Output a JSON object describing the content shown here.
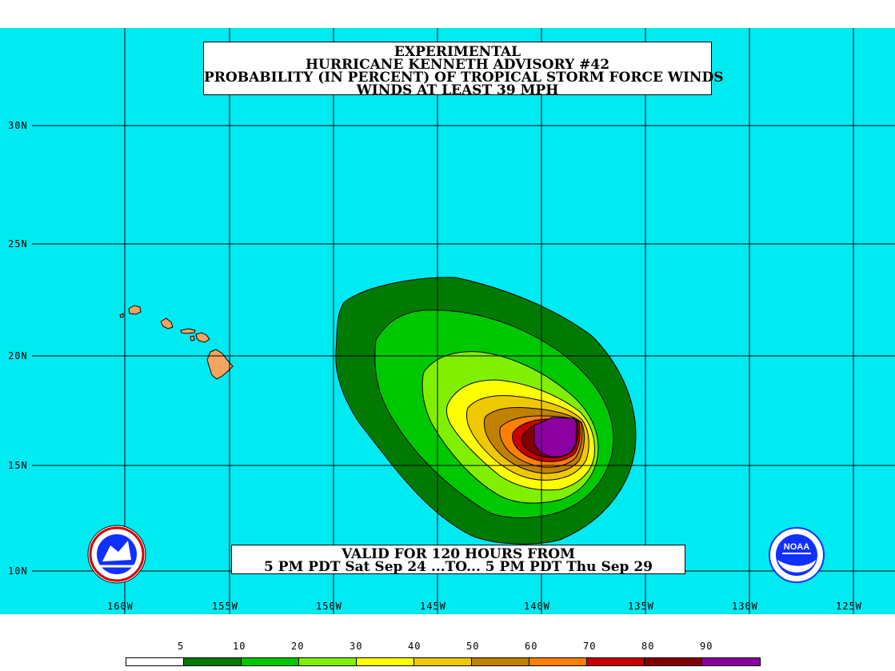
{
  "title": {
    "line1": "EXPERIMENTAL",
    "line2": "HURRICANE KENNETH ADVISORY #42",
    "line3": "PROBABILITY (IN PERCENT) OF TROPICAL STORM FORCE WINDS",
    "line4": "WINDS AT LEAST 39 MPH"
  },
  "valid": {
    "line1": "VALID FOR 120 HOURS FROM",
    "line2": "5 PM PDT Sat Sep 24 ...TO... 5 PM PDT Thu Sep 29"
  },
  "latitude_labels": [
    "30N",
    "25N",
    "20N",
    "15N",
    "10N"
  ],
  "longitude_labels": [
    "160W",
    "155W",
    "150W",
    "145W",
    "140W",
    "135W",
    "130W",
    "125W"
  ],
  "legend": {
    "labels": [
      "5",
      "10",
      "20",
      "30",
      "40",
      "50",
      "60",
      "70",
      "80",
      "90"
    ],
    "colors": [
      "#ffffff",
      "#007a00",
      "#00c800",
      "#80f000",
      "#ffff00",
      "#f0c800",
      "#c08000",
      "#ff8000",
      "#c80000",
      "#820000",
      "#8c00a0"
    ]
  },
  "colors": {
    "ocean": "#00eaf2",
    "land": "#f4a460",
    "grid": "#000000"
  },
  "logos": {
    "left": "National Weather Service logo",
    "right": "NOAA logo",
    "noaa_text": "NOAA"
  }
}
